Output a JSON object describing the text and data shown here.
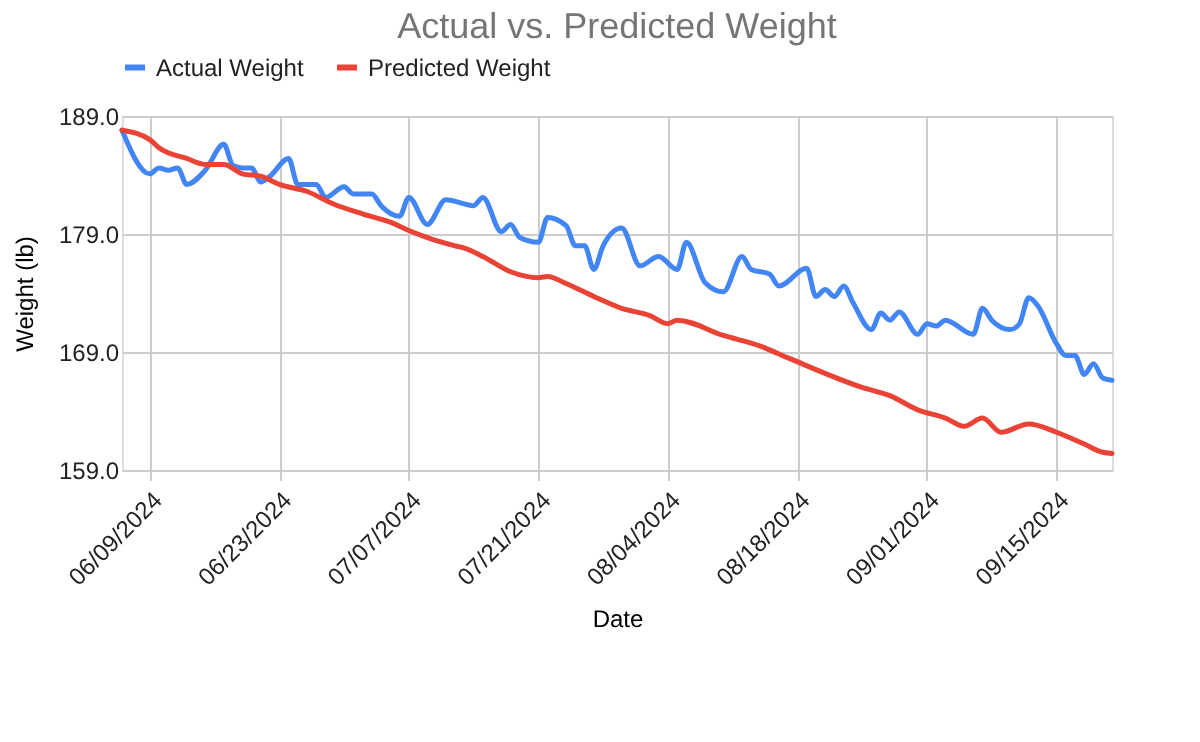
{
  "chart_data": {
    "type": "line",
    "title": "Actual vs. Predicted Weight",
    "xlabel": "Date",
    "ylabel": "Weight (lb)",
    "xlim": [
      "2024-06-06",
      "2024-09-21"
    ],
    "xticks": [
      {
        "value": "2024-06-09",
        "label": "06/09/2024"
      },
      {
        "value": "2024-06-23",
        "label": "06/23/2024"
      },
      {
        "value": "2024-07-07",
        "label": "07/07/2024"
      },
      {
        "value": "2024-07-21",
        "label": "07/21/2024"
      },
      {
        "value": "2024-08-04",
        "label": "08/04/2024"
      },
      {
        "value": "2024-08-18",
        "label": "08/18/2024"
      },
      {
        "value": "2024-09-01",
        "label": "09/01/2024"
      },
      {
        "value": "2024-09-15",
        "label": "09/15/2024"
      }
    ],
    "ylim": [
      159,
      189
    ],
    "yticks": [
      {
        "value": 159,
        "label": "159.0"
      },
      {
        "value": 169,
        "label": "169.0"
      },
      {
        "value": 179,
        "label": "179.0"
      },
      {
        "value": 189,
        "label": "189.0"
      }
    ],
    "grid": true,
    "legend": "top",
    "marker": "none",
    "line_style": "solid",
    "series": [
      {
        "name": "Actual Weight",
        "color": "#4285f4",
        "x": [
          "2024-06-06",
          "2024-06-09",
          "2024-06-10",
          "2024-06-11",
          "2024-06-12",
          "2024-06-13",
          "2024-06-15",
          "2024-06-17",
          "2024-06-18",
          "2024-06-19",
          "2024-06-20",
          "2024-06-21",
          "2024-06-22",
          "2024-06-24",
          "2024-06-25",
          "2024-06-27",
          "2024-06-28",
          "2024-06-30",
          "2024-07-01",
          "2024-07-03",
          "2024-07-04",
          "2024-07-06",
          "2024-07-07",
          "2024-07-09",
          "2024-07-11",
          "2024-07-14",
          "2024-07-15",
          "2024-07-17",
          "2024-07-18",
          "2024-07-19",
          "2024-07-21",
          "2024-07-22",
          "2024-07-24",
          "2024-07-25",
          "2024-07-26",
          "2024-07-27",
          "2024-07-28",
          "2024-07-30",
          "2024-08-01",
          "2024-08-03",
          "2024-08-05",
          "2024-08-06",
          "2024-08-08",
          "2024-08-10",
          "2024-08-12",
          "2024-08-13",
          "2024-08-15",
          "2024-08-16",
          "2024-08-19",
          "2024-08-20",
          "2024-08-21",
          "2024-08-22",
          "2024-08-23",
          "2024-08-24",
          "2024-08-26",
          "2024-08-27",
          "2024-08-28",
          "2024-08-29",
          "2024-08-31",
          "2024-09-01",
          "2024-09-02",
          "2024-09-03",
          "2024-09-06",
          "2024-09-07",
          "2024-09-08",
          "2024-09-10",
          "2024-09-11",
          "2024-09-12",
          "2024-09-13",
          "2024-09-15",
          "2024-09-16",
          "2024-09-17",
          "2024-09-18",
          "2024-09-19",
          "2024-09-20",
          "2024-09-21"
        ],
        "values": [
          187.8,
          184.1,
          184.6,
          184.4,
          184.6,
          183.2,
          184.4,
          186.6,
          184.8,
          184.6,
          184.6,
          183.4,
          183.9,
          185.4,
          183.2,
          183.2,
          182.1,
          183.0,
          182.4,
          182.4,
          181.4,
          180.5,
          182.1,
          179.8,
          181.9,
          181.4,
          182.1,
          179.2,
          179.8,
          178.7,
          178.3,
          180.4,
          179.7,
          178.0,
          178.0,
          176.0,
          178.0,
          179.5,
          176.3,
          177.1,
          176.0,
          178.3,
          174.9,
          174.1,
          177.1,
          176.0,
          175.6,
          174.6,
          176.1,
          173.7,
          174.3,
          173.7,
          174.6,
          173.2,
          170.9,
          172.3,
          171.7,
          172.4,
          170.5,
          171.4,
          171.2,
          171.7,
          170.5,
          172.7,
          171.7,
          170.9,
          171.4,
          173.6,
          172.9,
          169.7,
          168.7,
          168.7,
          167.1,
          168.0,
          166.8,
          166.6
        ]
      },
      {
        "name": "Predicted Weight",
        "color": "#ea4335",
        "x": [
          "2024-06-06",
          "2024-06-09",
          "2024-06-10",
          "2024-06-13",
          "2024-06-15",
          "2024-06-17",
          "2024-06-19",
          "2024-06-21",
          "2024-06-23",
          "2024-06-26",
          "2024-06-29",
          "2024-07-02",
          "2024-07-05",
          "2024-07-07",
          "2024-07-09",
          "2024-07-12",
          "2024-07-13",
          "2024-07-15",
          "2024-07-18",
          "2024-07-21",
          "2024-07-22",
          "2024-07-24",
          "2024-07-27",
          "2024-07-30",
          "2024-08-02",
          "2024-08-04",
          "2024-08-05",
          "2024-08-10",
          "2024-08-14",
          "2024-08-17",
          "2024-08-25",
          "2024-08-28",
          "2024-08-31",
          "2024-09-03",
          "2024-09-05",
          "2024-09-07",
          "2024-09-09",
          "2024-09-12",
          "2024-09-15",
          "2024-09-18",
          "2024-09-20",
          "2024-09-21"
        ],
        "values": [
          187.8,
          187.0,
          186.3,
          185.4,
          184.9,
          184.9,
          184.1,
          183.9,
          183.2,
          182.6,
          181.5,
          180.7,
          180.0,
          179.3,
          178.7,
          178.0,
          177.8,
          177.1,
          175.8,
          175.3,
          175.4,
          174.8,
          173.7,
          172.7,
          172.1,
          171.4,
          171.7,
          170.4,
          169.5,
          168.5,
          166.0,
          165.3,
          164.1,
          163.4,
          162.7,
          163.4,
          162.2,
          162.9,
          162.2,
          161.2,
          160.5,
          160.4
        ]
      }
    ]
  }
}
